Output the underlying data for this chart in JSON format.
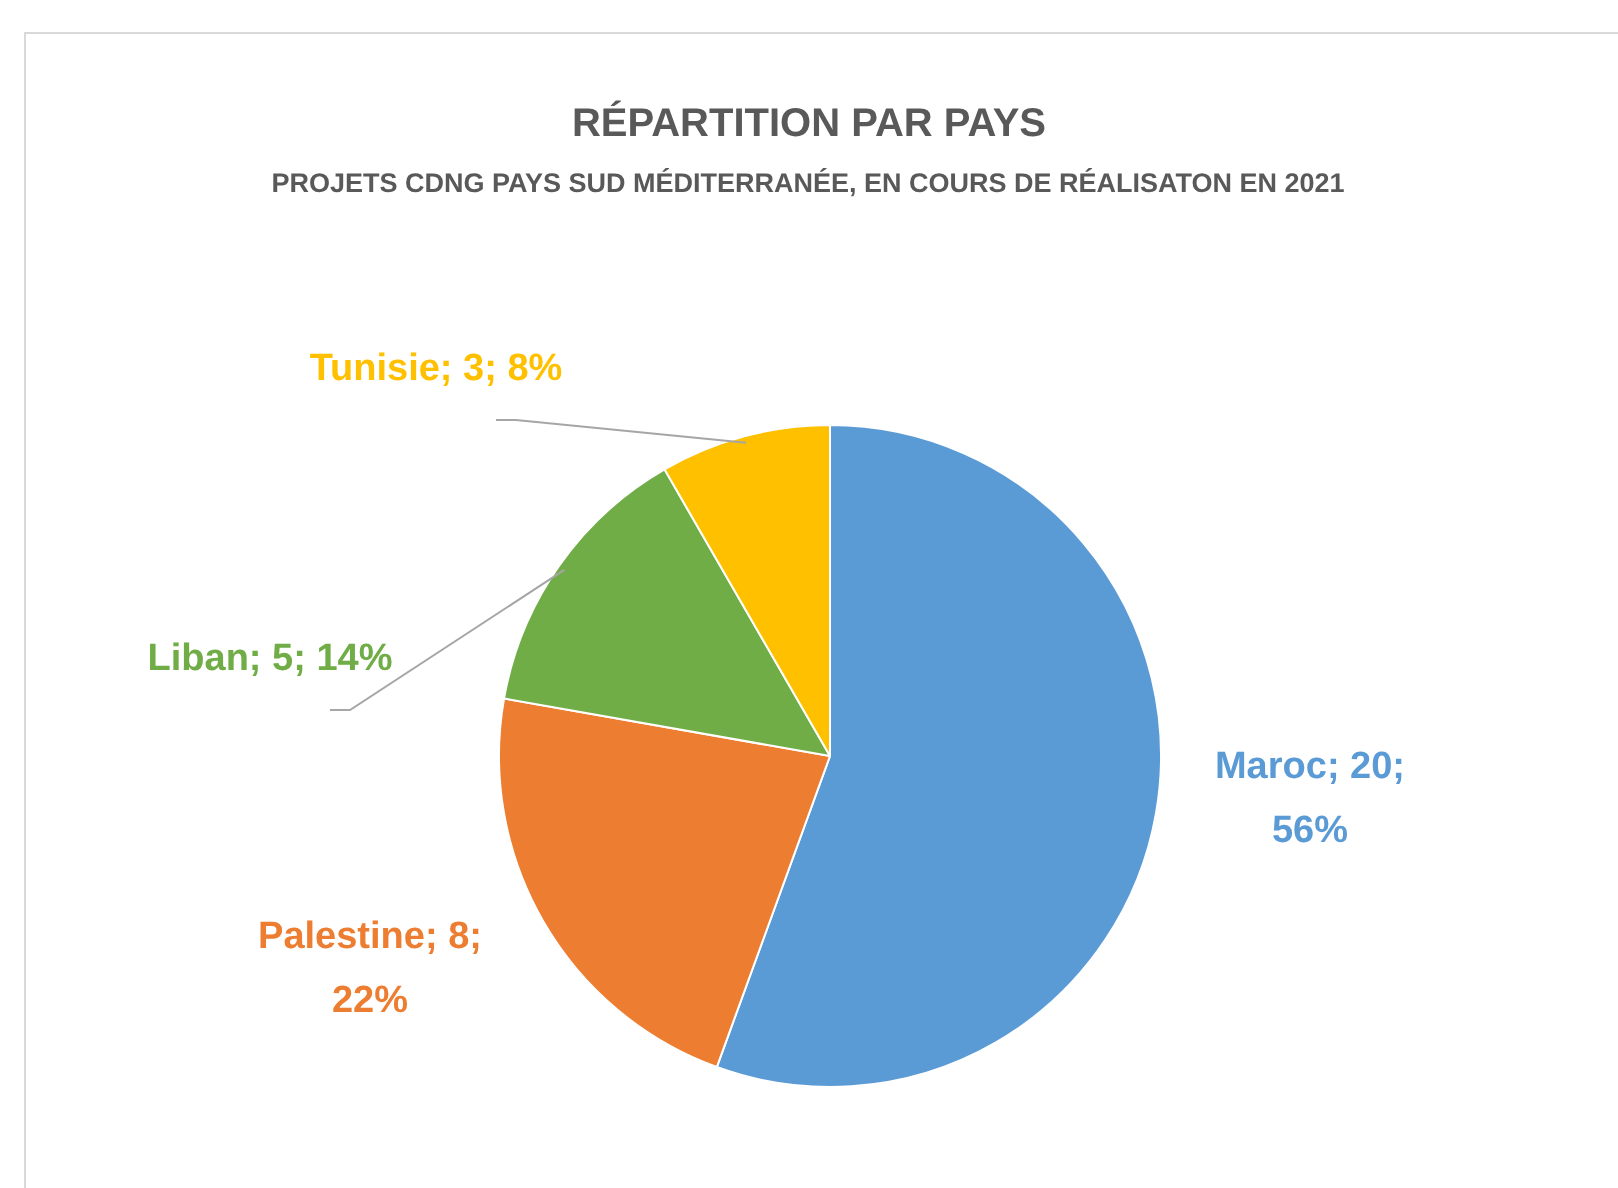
{
  "chart_data": {
    "type": "pie",
    "title": "RÉPARTITION PAR PAYS",
    "subtitle": "PROJETS CDNG PAYS SUD MÉDITERRANÉE, EN COURS DE RÉALISATON EN 2021",
    "categories": [
      "Maroc",
      "Palestine",
      "Liban",
      "Tunisie"
    ],
    "values": [
      20,
      8,
      5,
      3
    ],
    "colors": [
      "#5b9bd5",
      "#ed7d31",
      "#70ad47",
      "#ffc000"
    ],
    "value_labels": [
      "20; 56%",
      "8; 22%",
      "5; 14%",
      "3; 8%"
    ],
    "legend": false
  }
}
